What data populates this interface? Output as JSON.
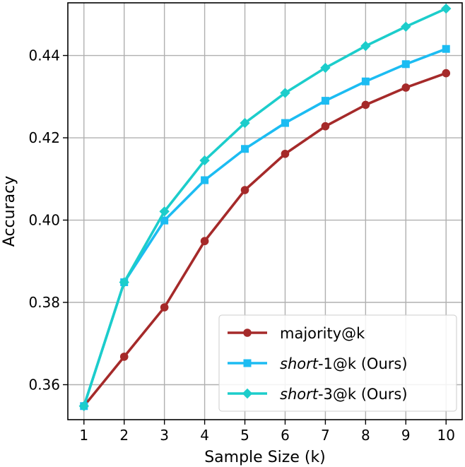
{
  "chart_data": {
    "type": "line",
    "title": "",
    "xlabel": "Sample Size (k)",
    "ylabel": "Accuracy",
    "x": [
      1,
      2,
      3,
      4,
      5,
      6,
      7,
      8,
      9,
      10
    ],
    "xlim": [
      0.6,
      10.4
    ],
    "ylim": [
      0.3515,
      0.4528
    ],
    "xticks": [
      "1",
      "2",
      "3",
      "4",
      "5",
      "6",
      "7",
      "8",
      "9",
      "10"
    ],
    "yticks": [
      "0.36",
      "0.38",
      "0.40",
      "0.42",
      "0.44"
    ],
    "ytick_values": [
      0.36,
      0.38,
      0.4,
      0.42,
      0.44
    ],
    "grid": true,
    "legend_position": "lower-right",
    "series": [
      {
        "name": "majority@k",
        "name_italic": "",
        "name_rest": "majority@k",
        "color": "#a52a2a",
        "marker": "circle",
        "values": [
          0.3548,
          0.3668,
          0.3788,
          0.3949,
          0.4073,
          0.4161,
          0.4228,
          0.428,
          0.4322,
          0.4357
        ]
      },
      {
        "name": "short-1@k (Ours)",
        "name_italic": "short",
        "name_rest": "-1@k  (Ours)",
        "color": "#1cbcf2",
        "marker": "square",
        "values": [
          0.3548,
          0.3849,
          0.3999,
          0.4097,
          0.4173,
          0.4236,
          0.429,
          0.4337,
          0.4379,
          0.4416
        ]
      },
      {
        "name": "short-3@k (Ours)",
        "name_italic": "short",
        "name_rest": "-3@k  (Ours)",
        "color": "#1ccdcb",
        "marker": "diamond",
        "values": [
          0.3548,
          0.3849,
          0.4021,
          0.4145,
          0.4236,
          0.4309,
          0.437,
          0.4423,
          0.447,
          0.4514
        ]
      }
    ]
  }
}
